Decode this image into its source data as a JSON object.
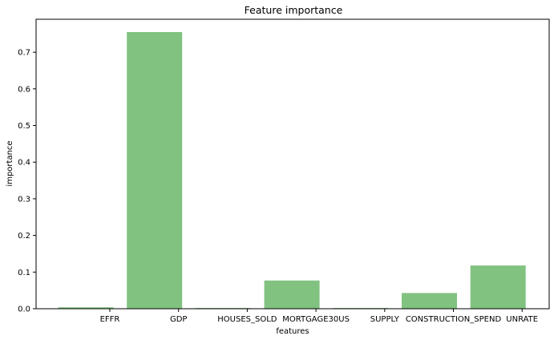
{
  "chart_data": {
    "type": "bar",
    "title": "Feature importance",
    "xlabel": "features",
    "ylabel": "importance",
    "categories": [
      "EFFR",
      "GDP",
      "HOUSES_SOLD",
      "MORTGAGE30US",
      "SUPPLY",
      "CONSTRUCTION_SPEND",
      "UNRATE"
    ],
    "values": [
      0.004,
      0.755,
      0.002,
      0.077,
      0.002,
      0.043,
      0.118
    ],
    "ylim": [
      0,
      0.79
    ],
    "yticks": [
      0.0,
      0.1,
      0.2,
      0.3,
      0.4,
      0.5,
      0.6,
      0.7
    ],
    "ytick_labels": [
      "0.0",
      "0.1",
      "0.2",
      "0.3",
      "0.4",
      "0.5",
      "0.6",
      "0.7"
    ],
    "bar_color": "#81c281",
    "grid": false,
    "legend": "none"
  }
}
